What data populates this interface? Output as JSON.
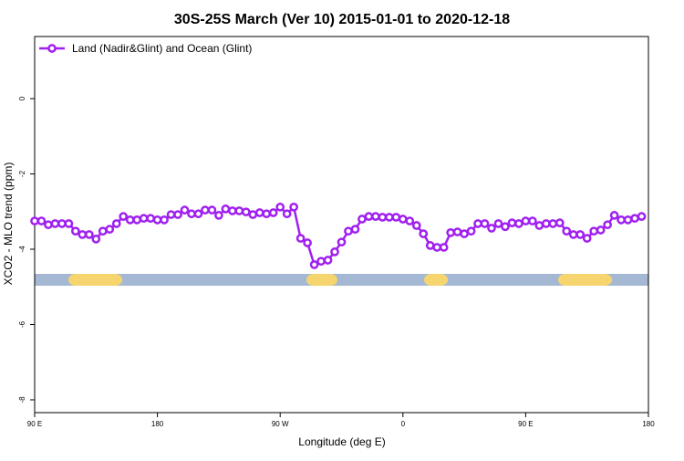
{
  "chart_data": {
    "type": "line",
    "title": "30S-25S March (Ver 10)   2015-01-01 to 2020-12-18",
    "x_label": "Longitude (deg E)",
    "y_label": "XCO2 - MLO trend (ppm)",
    "x": [
      90,
      95,
      100,
      105,
      110,
      115,
      120,
      125,
      130,
      135,
      140,
      145,
      150,
      155,
      160,
      165,
      170,
      175,
      180,
      185,
      190,
      195,
      200,
      205,
      210,
      215,
      220,
      225,
      230,
      235,
      240,
      245,
      250,
      255,
      260,
      265,
      270,
      275,
      280,
      285,
      290,
      295,
      300,
      305,
      310,
      315,
      320,
      325,
      330,
      335,
      340,
      345,
      350,
      355,
      360,
      365,
      370,
      375,
      380,
      385,
      390,
      395,
      400,
      405,
      410,
      415,
      420,
      425,
      430,
      435,
      440,
      445,
      450,
      455,
      460,
      465,
      470,
      475,
      480,
      485,
      490,
      495,
      500,
      505,
      510,
      515,
      520,
      525,
      530,
      535
    ],
    "series": [
      {
        "name": "Land (Nadir&Glint) and Ocean (Glint)",
        "color": "#a020f0",
        "values": [
          -3.25,
          -3.25,
          -3.35,
          -3.32,
          -3.32,
          -3.32,
          -3.52,
          -3.61,
          -3.61,
          -3.73,
          -3.52,
          -3.47,
          -3.32,
          -3.13,
          -3.22,
          -3.22,
          -3.18,
          -3.18,
          -3.22,
          -3.22,
          -3.08,
          -3.08,
          -2.96,
          -3.06,
          -3.06,
          -2.96,
          -2.96,
          -3.1,
          -2.93,
          -2.98,
          -2.98,
          -3.01,
          -3.08,
          -3.03,
          -3.06,
          -3.03,
          -2.88,
          -3.06,
          -2.88,
          -3.71,
          -3.83,
          -4.41,
          -4.32,
          -4.29,
          -4.07,
          -3.81,
          -3.52,
          -3.47,
          -3.2,
          -3.13,
          -3.13,
          -3.15,
          -3.15,
          -3.15,
          -3.2,
          -3.25,
          -3.37,
          -3.59,
          -3.9,
          -3.95,
          -3.95,
          -3.56,
          -3.54,
          -3.59,
          -3.52,
          -3.32,
          -3.32,
          -3.44,
          -3.32,
          -3.4,
          -3.3,
          -3.32,
          -3.25,
          -3.25,
          -3.37,
          -3.32,
          -3.32,
          -3.3,
          -3.52,
          -3.61,
          -3.61,
          -3.71,
          -3.52,
          -3.49,
          -3.35,
          -3.1,
          -3.22,
          -3.22,
          -3.18,
          -3.13
        ]
      }
    ],
    "xlim": [
      90,
      540
    ],
    "xticks": [
      {
        "value": 90,
        "label": "90 E"
      },
      180,
      {
        "value": 270,
        "label": "90 W"
      },
      {
        "value": 360,
        "label": "0"
      },
      {
        "value": 450,
        "label": "90 E"
      },
      {
        "value": 540,
        "label": "180"
      }
    ],
    "ylim": [
      -8.34,
      1.65
    ],
    "yticks": [
      0,
      -2,
      -4,
      -6,
      -8
    ],
    "legend": "top-left"
  }
}
